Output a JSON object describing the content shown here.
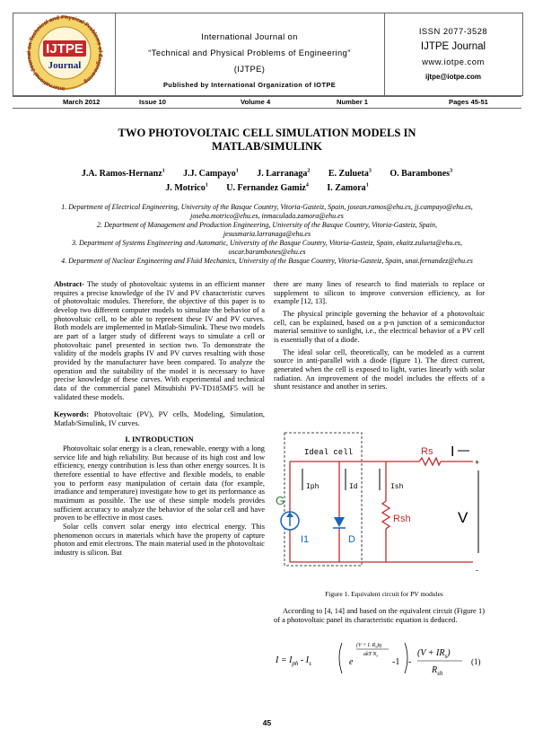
{
  "header": {
    "logo": {
      "ring": "International Journal on Technical and Physical Problems of Engineering",
      "mark": "IJTPE",
      "word": "Journal"
    },
    "center": [
      "International Journal on",
      "“Technical and Physical Problems of Engineering”",
      "(IJTPE)",
      "Published by International Organization of IOTPE"
    ],
    "right": {
      "issn": "ISSN 2077-3528",
      "journal": "IJTPE Journal",
      "website": "www.iotpe.com",
      "email": "ijtpe@iotpe.com"
    },
    "info": [
      "March 2012",
      "Issue 10",
      "Volume 4",
      "Number 1",
      "Pages 45-51"
    ]
  },
  "title": "TWO PHOTOVOLTAIC CELL SIMULATION MODELS IN MATLAB/SIMULINK",
  "authors": [
    {
      "name": "J.A. Ramos-Hernanz",
      "sup": "1"
    },
    {
      "name": "J.J. Campayo",
      "sup": "1"
    },
    {
      "name": "J. Larranaga",
      "sup": "2"
    },
    {
      "name": "E. Zulueta",
      "sup": "3"
    },
    {
      "name": "O. Barambones",
      "sup": "3"
    },
    {
      "name": "J. Motrico",
      "sup": "1"
    },
    {
      "name": "U. Fernandez Gamiz",
      "sup": "4"
    },
    {
      "name": "I. Zamora",
      "sup": "1"
    }
  ],
  "affiliations": [
    "1. Department of Electrical Engineering, University of the Basque Country, Vitoria-Gasteiz, Spain, josean.ramos@ehu.es, jj.campayo@ehu.es, joseba.motrico@ehu.es, inmaculada.zamora@ehu.es",
    "2. Department of Management and Production Engineering, University of the Basque Country, Vitoria-Gasteiz, Spain, jesusmaria.larranaga@ehu.es",
    "3. Department of Systems Engineering and Automatic, University of the Basque Country, Vitoria-Gasteiz, Spain, ekaitz.zulueta@ehu.es, oscar.barambones@ehu.es",
    "4. Department of Nuclear Engineering and Fluid Mechanics, University of the Basque Country, Vitoria-Gasteiz, Spain, unai.fernandez@ehu.es"
  ],
  "abstract": {
    "label": "Abstract-",
    "text": "The study of photovoltaic systems in an efficient manner requires a precise knowledge of the IV and PV characteristic curves of photovoltaic modules. Therefore, the objective of this paper is to develop two different computer models to simulate the behavior of a photovoltaic cell, to be able to represent these IV and PV curves. Both models are implemented in Matlab-Simulink. These two models are part of a larger study of different ways to simulate a cell or photovoltaic panel presented in section two. To demonstrate the validity of the models graphs IV and PV curves resulting with those provided by the manufacturer have been compared. To analyze the operation and the suitability of the model it is necessary to have precise knowledge of these curves. With experimental and technical data of the commercial panel Mitsubishi PV-TD185MF5 will be validated these models."
  },
  "keywords": {
    "label": "Keywords:",
    "text": "Photovoltaic (PV), PV cells, Modeling, Simulation, Matlab/Simulink, IV curves."
  },
  "section": "I. INTRODUCTION",
  "left_paragraphs": [
    "Photovoltaic solar energy is a clean, renewable, energy with a long service life and high reliability. But because of its high cost and low efficiency, energy contribution is less than other energy sources. It is therefore essential to have effective and flexible models, to enable you to perform easy manipulation of certain data (for example, irradiance and temperature) investigate how to get its performance as maximum as possible. The use of these simple models provides sufficient accuracy to analyze the behavior of the solar cell and have proven to be effective in most cases.",
    "Solar cells convert solar energy into electrical energy. This phenomenon occurs in materials which have the property of capture photon and emit electrons. The main material used in the photovoltaic industry is silicon. But"
  ],
  "right_paragraphs": [
    "there are many lines of research to find materials to replace or supplement to silicon to improve conversion efficiency, as for example [12, 13].",
    "The physical principle governing the behavior of a photovoltaic cell, can be explained, based on a p-n junction of a semiconductor material sensitive to sunlight, i.e., the electrical behavior of a PV cell is essentially that of a diode.",
    "The ideal solar cell, theoretically, can be modeled as a current source in anti-parallel with a diode (figure 1). The direct current, generated when the cell is exposed to light, varies linearly with solar radiation. An improvement of the model includes the effects of a shunt resistance and another in series."
  ],
  "figure": {
    "labels": {
      "ideal": "Ideal cell",
      "rs": "Rs",
      "i": "I",
      "plus": "+",
      "iph": "Iph",
      "id": "Id",
      "ish": "Ish",
      "g": "G",
      "i1": "I1",
      "d": "D",
      "rsh": "Rsh",
      "v": "V",
      "minus": "-"
    },
    "caption": "Figure 1. Equivalent circuit for PV modules"
  },
  "after_figure": "According to [4, 14] and based on the equivalent circuit (Figure 1) of a photovoltaic panel its characteristic equation is deduced.",
  "equation": {
    "lhs": "I = I",
    "ph": "ph",
    "minus_is": " - I",
    "s": "s",
    "exp": "e",
    "exp_num": "(V + I. R",
    "exp_rs": "s",
    "exp_q": ")q",
    "exp_den": "akT N",
    "exp_ns": "s",
    "minus_one": "-1",
    "frac_num": "(V + IR",
    "frac_rs": "s",
    "frac_close": ")",
    "frac_den": "R",
    "frac_sh": "sh",
    "number": "(1)"
  },
  "page_number": "45"
}
